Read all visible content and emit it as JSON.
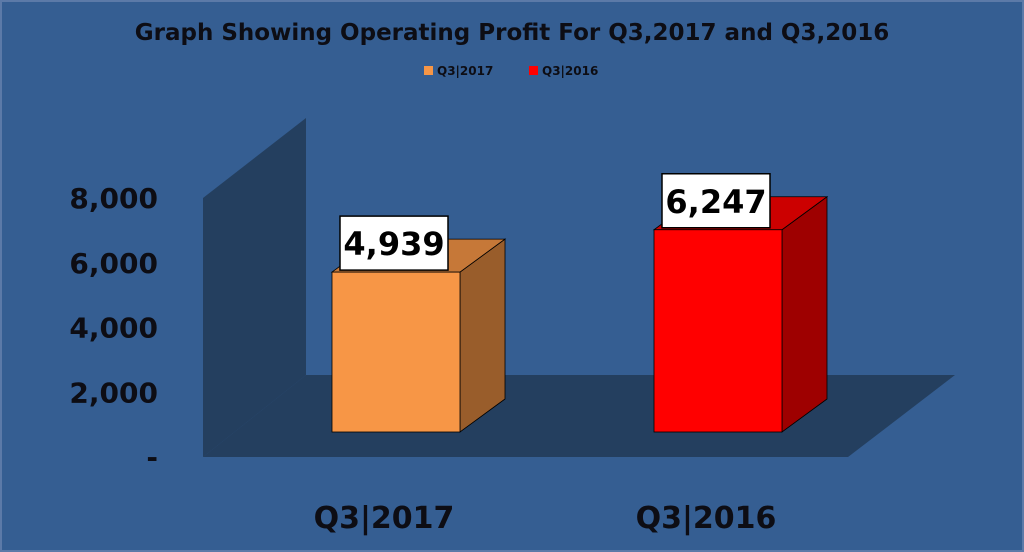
{
  "chart_data": {
    "type": "bar",
    "title": "Graph Showing Operating Profit For Q3,2017 and Q3,2016",
    "categories": [
      "Q3|2017",
      "Q3|2016"
    ],
    "values": [
      4939,
      6247
    ],
    "value_labels": [
      "4,939",
      "6,247"
    ],
    "bar_colors": [
      "#f79646",
      "#ff0000"
    ],
    "legend": {
      "position": "top",
      "entries": [
        {
          "label": "Q3|2017",
          "color": "#f79646"
        },
        {
          "label": "Q3|2016",
          "color": "#ff0000"
        }
      ]
    },
    "ylim": [
      0,
      8000
    ],
    "yticks": [
      0,
      2000,
      4000,
      6000,
      8000
    ],
    "ytick_labels": [
      "-",
      "2,000",
      "4,000",
      "6,000",
      "8,000"
    ],
    "grid": false,
    "style": "3d-column",
    "background_color": "#355e92"
  }
}
